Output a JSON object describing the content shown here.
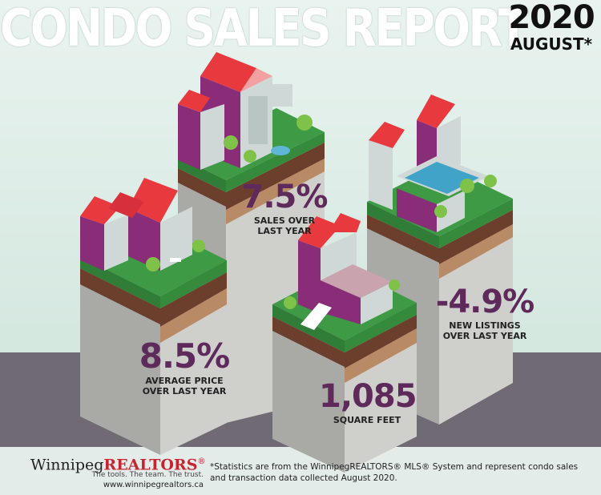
{
  "header": {
    "title": "CONDO SALES REPORT",
    "year": "2020",
    "month": "AUGUST*"
  },
  "stats": {
    "sales": {
      "value": "7.5%",
      "label_1": "SALES OVER",
      "label_2": "LAST YEAR"
    },
    "listings": {
      "value": "-4.9%",
      "label_1": "NEW LISTINGS",
      "label_2": "OVER LAST YEAR"
    },
    "price": {
      "value": "8.5%",
      "label_1": "AVERAGE PRICE",
      "label_2": "OVER LAST YEAR"
    },
    "sqft": {
      "value": "1,085",
      "label_1": "SQUARE FEET"
    }
  },
  "brand": {
    "name_part_1": "Winnipeg",
    "name_part_2": "REALTORS",
    "registered": "®",
    "tagline": "The tools. The team. The trust.",
    "website": "www.winnipegrealtors.ca"
  },
  "footnote": "*Statistics are from the WinnipegREALTORS® MLS® System and represent condo sales and transaction data collected August 2020.",
  "colors": {
    "background_top": "#dfeee8",
    "ground": "#6f6a74",
    "pillar": "#c9c9c6",
    "pillar_side": "#a9a9a6",
    "grass": "#3f9a45",
    "soil_dark": "#6b3f2c",
    "soil_light": "#b98a66",
    "roof": "#e8393f",
    "wall_purple": "#8a2d78",
    "wall_light": "#cfd8d6",
    "stat_text": "#5e2a5c"
  }
}
